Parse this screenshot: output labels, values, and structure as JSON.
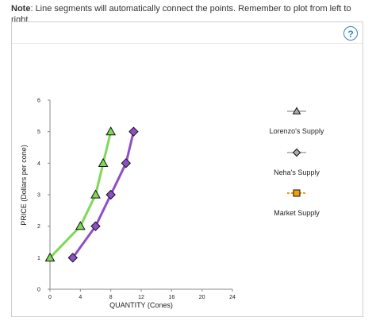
{
  "note": {
    "bold": "Note",
    "text": ": Line segments will automatically connect the points. Remember to plot from left to right."
  },
  "help": {
    "label": "?"
  },
  "colors": {
    "lorenzo": "#7ed957",
    "neha": "#8e4fc4",
    "market_marker": "#f39c12",
    "legend_gray": "#aaaaaa"
  },
  "chart_data": {
    "type": "line",
    "xlabel": "QUANTITY (Cones)",
    "ylabel": "PRICE (Dollars per cone)",
    "xlim": [
      0,
      24
    ],
    "ylim": [
      0,
      6
    ],
    "xticks": [
      0,
      4,
      8,
      12,
      16,
      20,
      24
    ],
    "yticks": [
      0,
      1,
      2,
      3,
      4,
      5,
      6
    ],
    "grid": false,
    "legend_position": "right",
    "series": [
      {
        "name": "Lorenzo's Supply",
        "marker": "triangle",
        "x": [
          0,
          4,
          6,
          7,
          8
        ],
        "y": [
          1,
          2,
          3,
          4,
          5
        ]
      },
      {
        "name": "Neha's Supply",
        "marker": "diamond",
        "x": [
          3,
          6,
          8,
          10,
          11
        ],
        "y": [
          1,
          2,
          3,
          4,
          5
        ]
      },
      {
        "name": "Market Supply",
        "marker": "square",
        "x": [],
        "y": []
      }
    ]
  }
}
